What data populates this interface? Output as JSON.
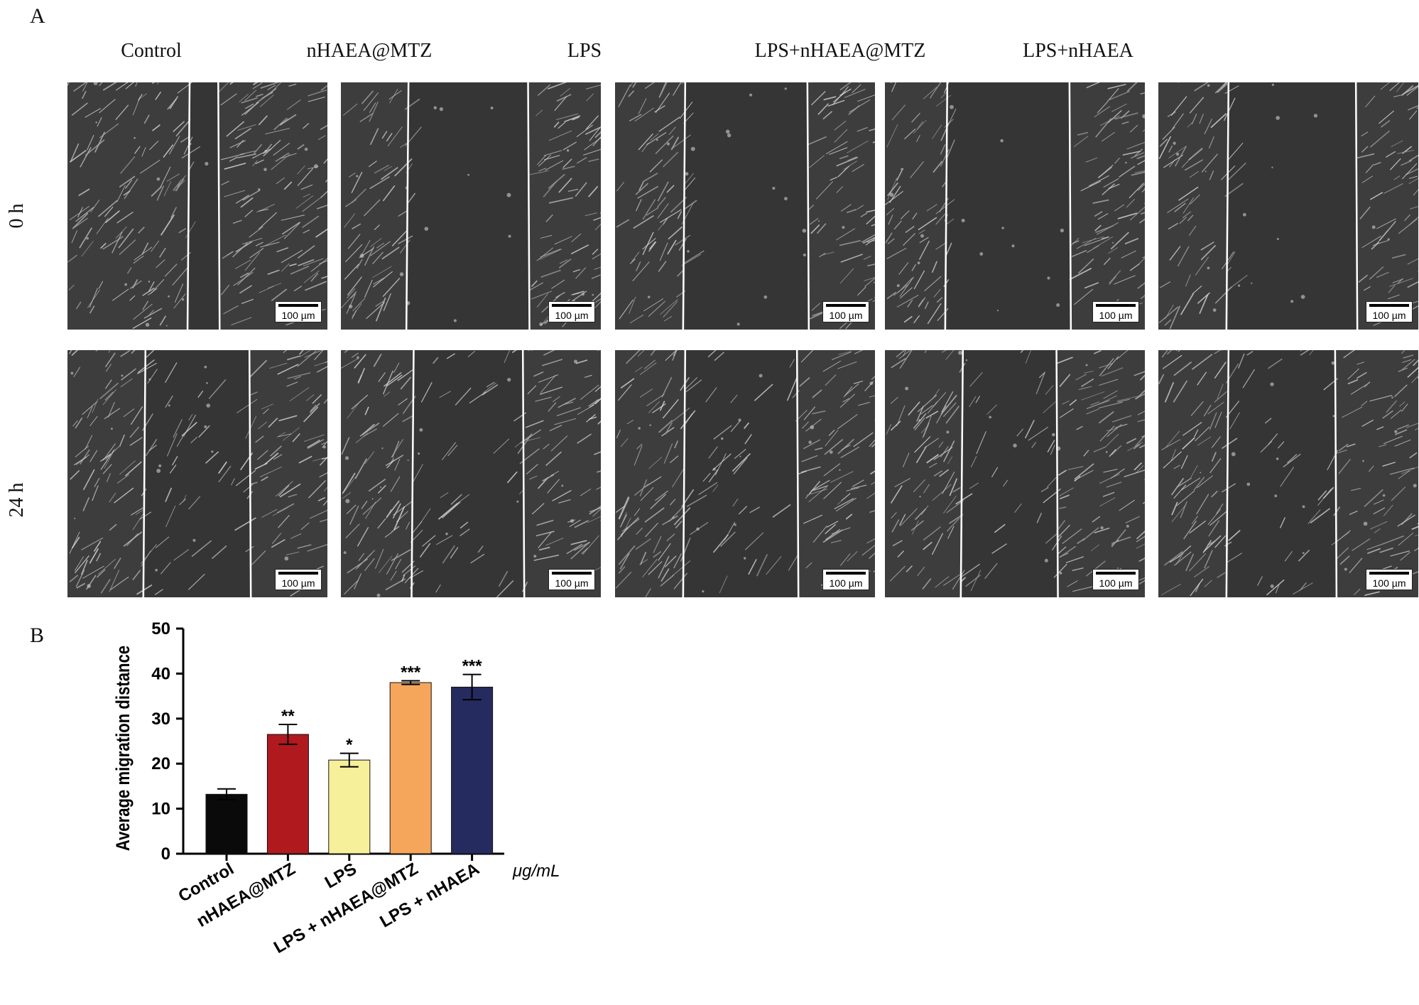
{
  "panel_a": {
    "letter": "A",
    "columns": [
      "Control",
      "nHAEA@MTZ",
      "LPS",
      "LPS+nHAEA@MTZ",
      "LPS+nHAEA"
    ],
    "rows": [
      "0 h",
      "24 h"
    ],
    "scale_bar": "100 µm"
  },
  "panel_b": {
    "letter": "B"
  },
  "chart_data": {
    "type": "bar",
    "categories": [
      "Control",
      "nHAEA@MTZ",
      "LPS",
      "LPS + nHAEA@MTZ",
      "LPS + nHAEA"
    ],
    "values": [
      13.2,
      26.5,
      20.8,
      38.0,
      37.0
    ],
    "errors": [
      1.2,
      2.2,
      1.5,
      0.4,
      2.8
    ],
    "significance": [
      "",
      "**",
      "*",
      "***",
      "***"
    ],
    "colors": [
      "#0a0a0a",
      "#b01a1e",
      "#f7f09a",
      "#f5a65b",
      "#252b5e"
    ],
    "ylabel": "Average migration distance",
    "unit_label": "μg/mL",
    "ylim": [
      0,
      50
    ],
    "yticks": [
      0,
      10,
      20,
      30,
      40,
      50
    ],
    "grid": false,
    "legend": "none"
  }
}
